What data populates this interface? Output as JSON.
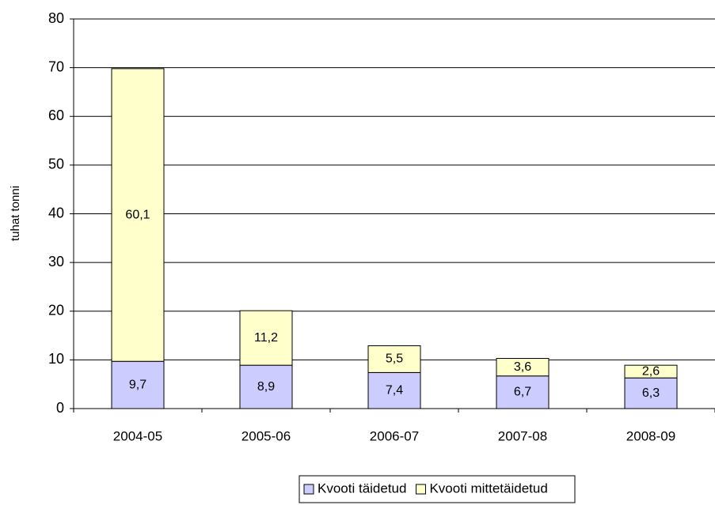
{
  "chart_data": {
    "type": "stacked_bar",
    "y_axis_label": "tuhat tonni",
    "categories": [
      "2004-05",
      "2005-06",
      "2006-07",
      "2007-08",
      "2008-09"
    ],
    "series": [
      {
        "name": "Kvooti täidetud",
        "color": "#ccccff",
        "values": [
          9.7,
          8.9,
          7.4,
          6.7,
          6.3
        ],
        "value_labels": [
          "9,7",
          "8,9",
          "7,4",
          "6,7",
          "6,3"
        ]
      },
      {
        "name": "Kvooti mittetäidetud",
        "color": "#ffffcc",
        "values": [
          60.1,
          11.2,
          5.5,
          3.6,
          2.6
        ],
        "value_labels": [
          "60,1",
          "11,2",
          "5,5",
          "3,6",
          "2,6"
        ]
      }
    ],
    "ylim": [
      0,
      80
    ],
    "yticks": [
      0,
      10,
      20,
      30,
      40,
      50,
      60,
      70,
      80
    ],
    "grid": true,
    "legend": "bottom"
  }
}
